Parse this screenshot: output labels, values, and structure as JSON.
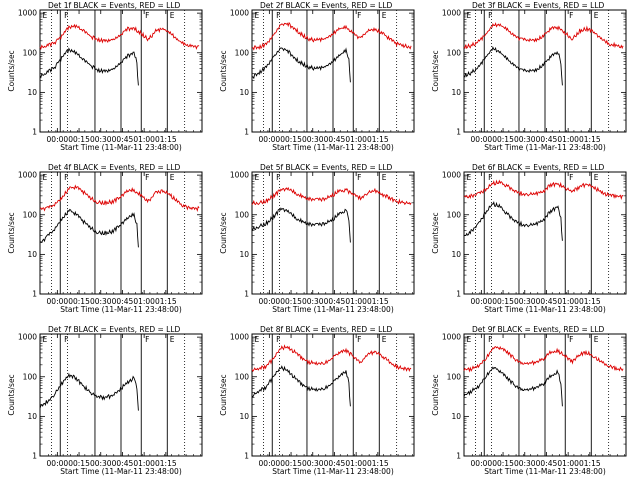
{
  "figure": {
    "x_axis_label": "Start Time (11-Mar-11 23:48:00)",
    "y_axis_label": "Counts/sec",
    "x_tick_labels": [
      "00:00",
      "00:15",
      "00:30",
      "00:45",
      "01:00",
      "01:15"
    ],
    "y_tick_labels": [
      "1",
      "10",
      "100",
      "1000"
    ],
    "line_colors": {
      "events": "#000000",
      "lld": "#dd0000"
    }
  },
  "chart_data": [
    {
      "type": "line",
      "title": "Det 1f  BLACK = Events, RED = LLD",
      "y_scale": "log",
      "ylim": [
        1,
        1200
      ],
      "x_unit": "minutes from 23:48:00",
      "xlim": [
        0,
        112
      ],
      "series": [
        {
          "key": "events",
          "x": [
            0,
            5,
            10,
            15,
            20,
            25,
            30,
            35,
            40,
            45,
            50,
            55,
            60,
            65,
            67,
            68
          ],
          "values": [
            28,
            33,
            45,
            80,
            130,
            105,
            70,
            50,
            38,
            37,
            40,
            55,
            85,
            110,
            60,
            15
          ]
        },
        {
          "key": "lld",
          "x": [
            0,
            5,
            10,
            15,
            20,
            25,
            30,
            35,
            40,
            45,
            50,
            55,
            60,
            65,
            70,
            75,
            80,
            85,
            90,
            95,
            100,
            105,
            110
          ],
          "values": [
            150,
            155,
            190,
            280,
            480,
            500,
            380,
            270,
            225,
            215,
            225,
            280,
            420,
            450,
            320,
            230,
            370,
            420,
            330,
            230,
            170,
            155,
            150
          ]
        }
      ]
    },
    {
      "type": "line",
      "title": "Det 2f  BLACK = Events, RED = LLD",
      "y_scale": "log",
      "ylim": [
        1,
        1200
      ],
      "x_unit": "minutes from 23:48:00",
      "xlim": [
        0,
        112
      ],
      "series": [
        {
          "key": "events",
          "x": [
            0,
            5,
            10,
            15,
            20,
            25,
            30,
            35,
            40,
            45,
            50,
            55,
            60,
            65,
            67,
            68
          ],
          "values": [
            25,
            33,
            48,
            85,
            140,
            115,
            75,
            55,
            45,
            42,
            45,
            58,
            90,
            120,
            70,
            18
          ]
        },
        {
          "key": "lld",
          "x": [
            0,
            5,
            10,
            15,
            20,
            25,
            30,
            35,
            40,
            45,
            50,
            55,
            60,
            65,
            70,
            75,
            80,
            85,
            90,
            95,
            100,
            105,
            110
          ],
          "values": [
            140,
            145,
            180,
            300,
            550,
            560,
            420,
            290,
            230,
            220,
            230,
            290,
            430,
            460,
            330,
            240,
            380,
            430,
            340,
            240,
            180,
            160,
            150
          ]
        }
      ]
    },
    {
      "type": "line",
      "title": "Det 3f  BLACK = Events, RED = LLD",
      "y_scale": "log",
      "ylim": [
        1,
        1200
      ],
      "x_unit": "minutes from 23:48:00",
      "xlim": [
        0,
        112
      ],
      "series": [
        {
          "key": "events",
          "x": [
            0,
            5,
            10,
            15,
            20,
            25,
            30,
            35,
            40,
            45,
            50,
            55,
            60,
            65,
            67,
            68
          ],
          "values": [
            28,
            33,
            45,
            80,
            135,
            110,
            72,
            50,
            38,
            37,
            40,
            55,
            85,
            110,
            60,
            15
          ]
        },
        {
          "key": "lld",
          "x": [
            0,
            5,
            10,
            15,
            20,
            25,
            30,
            35,
            40,
            45,
            50,
            55,
            60,
            65,
            70,
            75,
            80,
            85,
            90,
            95,
            100,
            105,
            110
          ],
          "values": [
            150,
            160,
            200,
            300,
            520,
            540,
            400,
            280,
            230,
            220,
            230,
            290,
            430,
            460,
            330,
            240,
            380,
            430,
            340,
            240,
            180,
            160,
            150
          ]
        }
      ]
    },
    {
      "type": "line",
      "title": "Det 4f  BLACK = Events, RED = LLD",
      "y_scale": "log",
      "ylim": [
        1,
        1200
      ],
      "x_unit": "minutes from 23:48:00",
      "xlim": [
        0,
        112
      ],
      "series": [
        {
          "key": "events",
          "x": [
            0,
            5,
            10,
            15,
            20,
            25,
            30,
            35,
            40,
            45,
            50,
            55,
            60,
            65,
            67,
            68
          ],
          "values": [
            20,
            30,
            45,
            85,
            140,
            110,
            72,
            50,
            38,
            37,
            40,
            55,
            85,
            110,
            60,
            15
          ]
        },
        {
          "key": "lld",
          "x": [
            0,
            5,
            10,
            15,
            20,
            25,
            30,
            35,
            40,
            45,
            50,
            55,
            60,
            65,
            70,
            75,
            80,
            85,
            90,
            95,
            100,
            105,
            110
          ],
          "values": [
            150,
            155,
            190,
            290,
            500,
            530,
            400,
            280,
            220,
            215,
            225,
            280,
            420,
            450,
            320,
            230,
            370,
            420,
            330,
            230,
            170,
            155,
            150
          ]
        }
      ]
    },
    {
      "type": "line",
      "title": "Det 5f  BLACK = Events, RED = LLD",
      "y_scale": "log",
      "ylim": [
        1,
        1200
      ],
      "x_unit": "minutes from 23:48:00",
      "xlim": [
        0,
        112
      ],
      "series": [
        {
          "key": "events",
          "x": [
            0,
            5,
            10,
            15,
            20,
            25,
            30,
            35,
            40,
            45,
            50,
            55,
            60,
            65,
            67,
            68
          ],
          "values": [
            45,
            55,
            65,
            95,
            150,
            130,
            90,
            70,
            60,
            58,
            62,
            75,
            110,
            140,
            80,
            20
          ]
        },
        {
          "key": "lld",
          "x": [
            0,
            5,
            10,
            15,
            20,
            25,
            30,
            35,
            40,
            45,
            50,
            55,
            60,
            65,
            70,
            75,
            80,
            85,
            90,
            95,
            100,
            105,
            110
          ],
          "values": [
            210,
            215,
            240,
            320,
            450,
            480,
            380,
            300,
            260,
            250,
            260,
            310,
            420,
            450,
            350,
            280,
            380,
            430,
            350,
            280,
            230,
            215,
            200
          ]
        }
      ]
    },
    {
      "type": "line",
      "title": "Det 6f  BLACK = Events, RED = LLD",
      "y_scale": "log",
      "ylim": [
        1,
        1200
      ],
      "x_unit": "minutes from 23:48:00",
      "xlim": [
        0,
        112
      ],
      "series": [
        {
          "key": "events",
          "x": [
            0,
            5,
            10,
            15,
            20,
            25,
            30,
            35,
            40,
            45,
            50,
            55,
            60,
            65,
            67,
            68
          ],
          "values": [
            30,
            40,
            60,
            120,
            200,
            170,
            110,
            75,
            60,
            58,
            62,
            80,
            130,
            170,
            90,
            22
          ]
        },
        {
          "key": "lld",
          "x": [
            0,
            5,
            10,
            15,
            20,
            25,
            30,
            35,
            40,
            45,
            50,
            55,
            60,
            65,
            70,
            75,
            80,
            85,
            90,
            95,
            100,
            105,
            110
          ],
          "values": [
            300,
            310,
            350,
            450,
            650,
            700,
            560,
            420,
            360,
            350,
            360,
            420,
            600,
            640,
            500,
            400,
            550,
            620,
            500,
            400,
            330,
            310,
            300
          ]
        }
      ]
    },
    {
      "type": "line",
      "title": "Det 7f  BLACK = Events, RED = LLD",
      "y_scale": "log",
      "ylim": [
        1,
        1200
      ],
      "x_unit": "minutes from 23:48:00",
      "xlim": [
        0,
        112
      ],
      "series": [
        {
          "key": "events",
          "x": [
            0,
            5,
            10,
            15,
            20,
            25,
            30,
            35,
            40,
            45,
            50,
            55,
            60,
            65,
            67,
            68
          ],
          "values": [
            18,
            25,
            38,
            70,
            120,
            95,
            62,
            42,
            32,
            32,
            35,
            48,
            75,
            100,
            55,
            14
          ]
        }
      ]
    },
    {
      "type": "line",
      "title": "Det 8f  BLACK = Events, RED = LLD",
      "y_scale": "log",
      "ylim": [
        1,
        1200
      ],
      "x_unit": "minutes from 23:48:00",
      "xlim": [
        0,
        112
      ],
      "series": [
        {
          "key": "events",
          "x": [
            0,
            5,
            10,
            15,
            20,
            25,
            30,
            35,
            40,
            45,
            50,
            55,
            60,
            65,
            67,
            68
          ],
          "values": [
            35,
            45,
            60,
            110,
            180,
            150,
            95,
            65,
            52,
            50,
            55,
            70,
            110,
            140,
            75,
            18
          ]
        },
        {
          "key": "lld",
          "x": [
            0,
            5,
            10,
            15,
            20,
            25,
            30,
            35,
            40,
            45,
            50,
            55,
            60,
            65,
            70,
            75,
            80,
            85,
            90,
            95,
            100,
            105,
            110
          ],
          "values": [
            160,
            165,
            200,
            310,
            560,
            590,
            430,
            300,
            240,
            230,
            240,
            300,
            440,
            480,
            350,
            250,
            390,
            440,
            350,
            250,
            190,
            170,
            160
          ]
        }
      ]
    },
    {
      "type": "line",
      "title": "Det 9f  BLACK = Events, RED = LLD",
      "y_scale": "log",
      "ylim": [
        1,
        1200
      ],
      "x_unit": "minutes from 23:48:00",
      "xlim": [
        0,
        112
      ],
      "series": [
        {
          "key": "events",
          "x": [
            0,
            5,
            10,
            15,
            20,
            25,
            30,
            35,
            40,
            45,
            50,
            55,
            60,
            65,
            67,
            68
          ],
          "values": [
            35,
            45,
            60,
            110,
            180,
            150,
            95,
            65,
            52,
            50,
            55,
            70,
            110,
            140,
            75,
            18
          ]
        },
        {
          "key": "lld",
          "x": [
            0,
            5,
            10,
            15,
            20,
            25,
            30,
            35,
            40,
            45,
            50,
            55,
            60,
            65,
            70,
            75,
            80,
            85,
            90,
            95,
            100,
            105,
            110
          ],
          "values": [
            160,
            165,
            200,
            310,
            560,
            590,
            430,
            300,
            240,
            230,
            240,
            300,
            440,
            480,
            350,
            250,
            390,
            440,
            350,
            250,
            190,
            170,
            160
          ]
        }
      ]
    }
  ]
}
